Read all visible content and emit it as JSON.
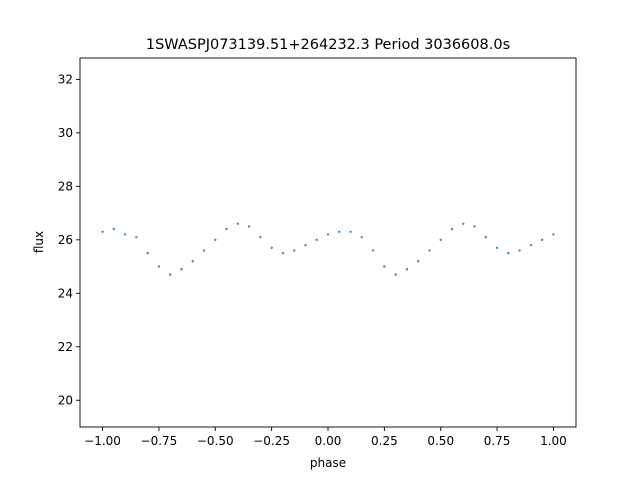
{
  "chart_data": {
    "type": "scatter",
    "title": "1SWASPJ073139.51+264232.3 Period 3036608.0s",
    "xlabel": "phase",
    "ylabel": "flux",
    "xlim": [
      -1.1,
      1.1
    ],
    "ylim": [
      19.0,
      32.8
    ],
    "x_ticks": [
      -1.0,
      -0.75,
      -0.5,
      -0.25,
      0.0,
      0.25,
      0.5,
      0.75,
      1.0
    ],
    "x_tick_labels": [
      "−1.00",
      "−0.75",
      "−0.50",
      "−0.25",
      "0.00",
      "0.25",
      "0.50",
      "0.75",
      "1.00"
    ],
    "y_ticks": [
      20,
      22,
      24,
      26,
      28,
      30,
      32
    ],
    "y_tick_labels": [
      "20",
      "22",
      "24",
      "26",
      "28",
      "30",
      "32"
    ],
    "grid": false,
    "marker_color": "#1f77b4",
    "series": [
      {
        "x": [
          -1.0,
          -0.95,
          -0.9,
          -0.85,
          -0.8,
          -0.75,
          -0.7,
          -0.65,
          -0.6,
          -0.55,
          -0.5,
          -0.45,
          -0.4,
          -0.35,
          -0.3,
          -0.25,
          -0.2,
          -0.15,
          -0.1,
          -0.05,
          0.0,
          0.05,
          0.1,
          0.15,
          0.2,
          0.25,
          0.3,
          0.35,
          0.4,
          0.45,
          0.5,
          0.55,
          0.6,
          0.65,
          0.7,
          0.75,
          0.8,
          0.85,
          0.9,
          0.95,
          1.0
        ],
        "y": [
          26.3,
          26.4,
          26.2,
          26.1,
          25.5,
          25.0,
          24.7,
          24.9,
          25.2,
          25.6,
          26.0,
          26.4,
          26.6,
          26.5,
          26.1,
          25.7,
          25.5,
          25.6,
          25.8,
          26.0,
          26.2,
          26.3,
          26.3,
          26.1,
          25.6,
          25.0,
          24.7,
          24.9,
          25.2,
          25.6,
          26.0,
          26.4,
          26.6,
          26.5,
          26.1,
          25.7,
          25.5,
          25.6,
          25.8,
          26.0,
          26.2
        ]
      }
    ]
  }
}
